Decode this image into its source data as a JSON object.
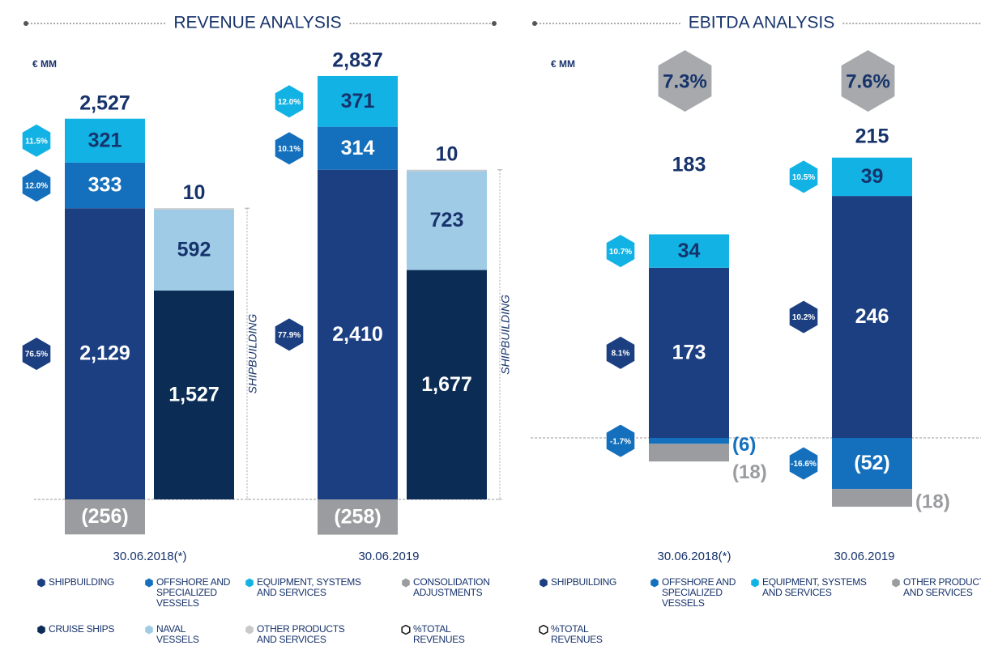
{
  "chart_data": [
    {
      "type": "bar",
      "title": "REVENUE ANALYSIS",
      "unit": "€ MM",
      "categories": [
        "30.06.2018(*)",
        "30.06.2019"
      ],
      "series": [
        {
          "name": "SHIPBUILDING",
          "color": "#1c3f82",
          "values": [
            2129,
            2410
          ],
          "value_labels": [
            "2,129",
            "2,410"
          ],
          "shares": [
            76.5,
            77.9
          ],
          "share_labels": [
            "76.5%",
            "77.9%"
          ]
        },
        {
          "name": "OFFSHORE AND SPECIALIZED VESSELS",
          "color": "#1470bd",
          "values": [
            333,
            314
          ],
          "shares": [
            12.0,
            10.1
          ],
          "share_labels": [
            "12.0%",
            "10.1%"
          ]
        },
        {
          "name": "EQUIPMENT, SYSTEMS AND SERVICES",
          "color": "#12b2e5",
          "values": [
            321,
            371
          ],
          "shares": [
            11.5,
            12.0
          ],
          "share_labels": [
            "11.5%",
            "12.0%"
          ]
        },
        {
          "name": "CONSOLIDATION ADJUSTMENTS",
          "color": "#9b9c9f",
          "values": [
            -256,
            -258
          ],
          "value_labels": [
            "(256)",
            "(258)"
          ]
        }
      ],
      "totals": [
        2527,
        2837
      ],
      "total_labels": [
        "2,527",
        "2,837"
      ],
      "shipbuilding_label": "SHIPBUILDING",
      "shipbuilding_series": [
        {
          "name": "CRUISE SHIPS",
          "color": "#0b2d55",
          "values": [
            1527,
            1677
          ],
          "value_labels": [
            "1,527",
            "1,677"
          ]
        },
        {
          "name": "NAVAL VESSELS",
          "color": "#9fcbe6",
          "values": [
            592,
            723
          ]
        },
        {
          "name": "OTHER PRODUCTS AND SERVICES",
          "color": "#c8c9cb",
          "values": [
            10,
            10
          ]
        }
      ],
      "share_legend": "%TOTAL REVENUES"
    },
    {
      "type": "bar",
      "title": "EBITDA ANALYSIS",
      "unit": "€ MM",
      "categories": [
        "30.06.2018(*)",
        "30.06.2019"
      ],
      "series": [
        {
          "name": "SHIPBUILDING",
          "color": "#1c3f82",
          "values": [
            173,
            246
          ],
          "shares": [
            8.1,
            10.2
          ],
          "share_labels": [
            "8.1%",
            "10.2%"
          ]
        },
        {
          "name": "OFFSHORE AND SPECIALIZED VESSELS",
          "color": "#1470bd",
          "values": [
            -6,
            -52
          ],
          "value_labels": [
            "(6)",
            "(52)"
          ],
          "shares": [
            -1.7,
            -16.6
          ],
          "share_labels": [
            "-1.7%",
            "-16.6%"
          ]
        },
        {
          "name": "EQUIPMENT, SYSTEMS AND SERVICES",
          "color": "#12b2e5",
          "values": [
            34,
            39
          ],
          "shares": [
            10.7,
            10.5
          ],
          "share_labels": [
            "10.7%",
            "10.5%"
          ]
        },
        {
          "name": "OTHER PRODUCTS AND SERVICES",
          "color": "#9b9c9f",
          "values": [
            -18,
            -18
          ],
          "value_labels": [
            "(18)",
            "(18)"
          ]
        }
      ],
      "totals": [
        183,
        215
      ],
      "margins": [
        7.3,
        7.6
      ],
      "margin_labels": [
        "7.3%",
        "7.6%"
      ],
      "share_legend": "%TOTAL REVENUES"
    }
  ]
}
